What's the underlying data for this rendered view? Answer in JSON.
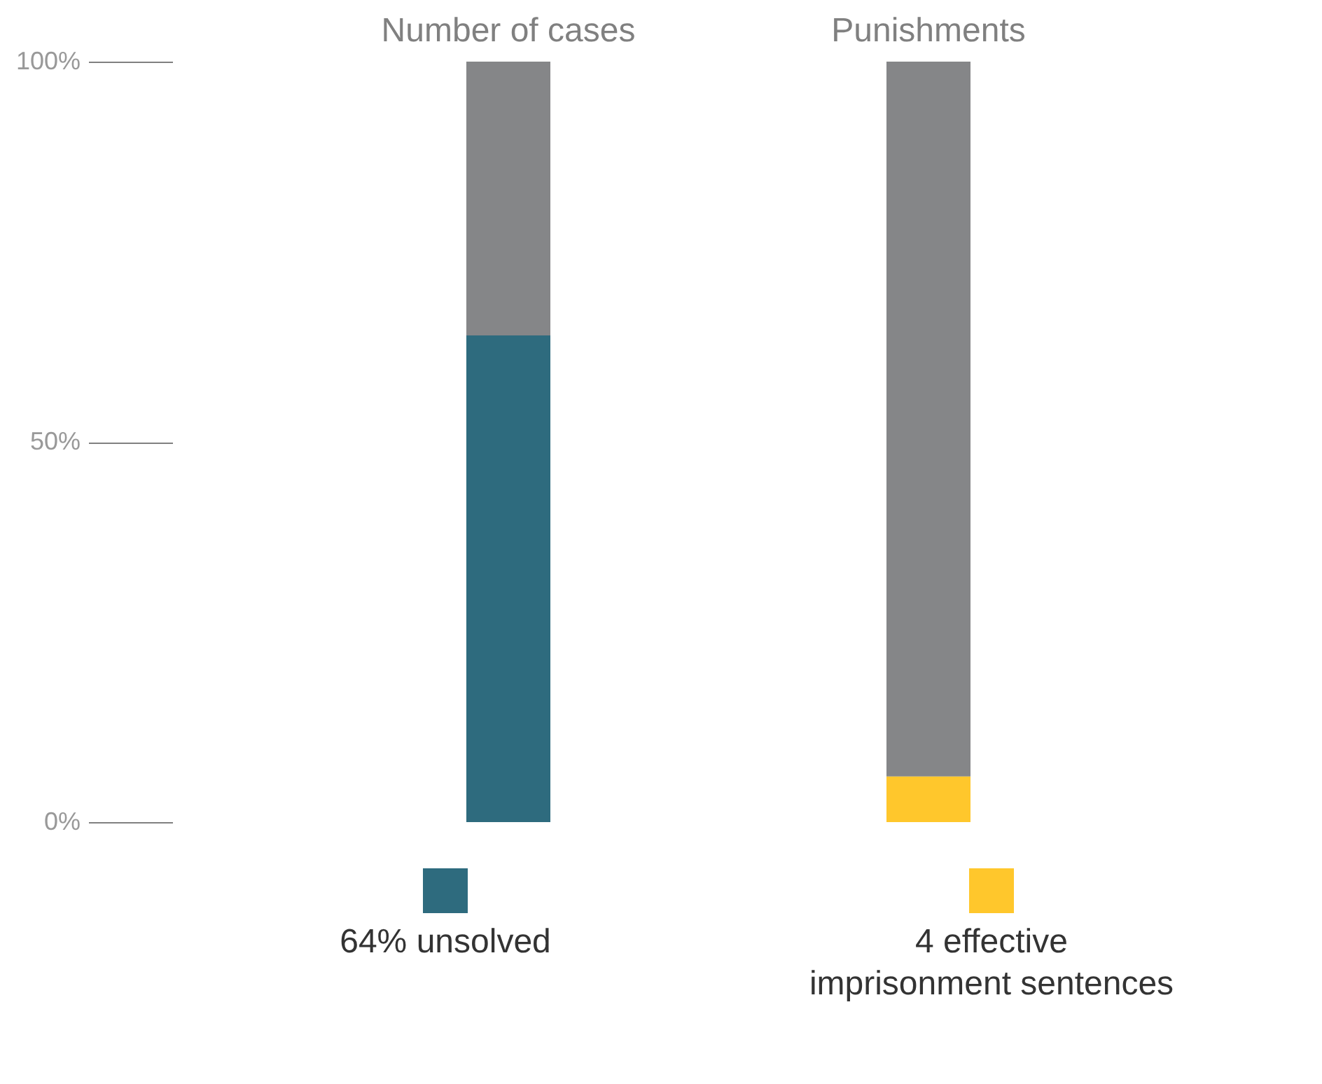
{
  "chart_data": {
    "type": "bar",
    "stacked": true,
    "categories": [
      "Number of cases",
      "Punishments"
    ],
    "series": [
      {
        "name": "64% unsolved",
        "color": "#2e6b7e",
        "values": [
          64,
          null
        ]
      },
      {
        "name": "4 effective imprisonment sentences",
        "color": "#ffc72c",
        "values": [
          null,
          6
        ]
      },
      {
        "color": "#858688",
        "values": [
          36,
          94
        ]
      }
    ],
    "ylim": [
      0,
      100
    ],
    "yticks": [
      {
        "value": 0,
        "label": "0%"
      },
      {
        "value": 50,
        "label": "50%"
      },
      {
        "value": 100,
        "label": "100%"
      }
    ],
    "grid": false,
    "legend": "bottom"
  }
}
